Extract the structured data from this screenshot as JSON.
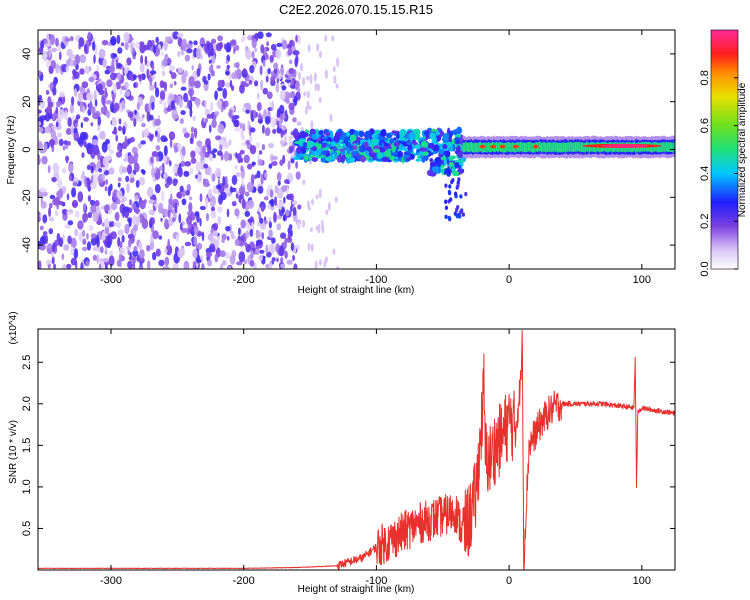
{
  "title": "C2E2.2026.070.15.15.R15",
  "chart_data": [
    {
      "type": "heatmap",
      "title": "C2E2.2026.070.15.15.R15",
      "xlabel": "Height of straight line (km)",
      "ylabel": "Frequency (Hz)",
      "xlim": [
        -355,
        125
      ],
      "ylim": [
        -50,
        50
      ],
      "xticks": [
        -300,
        -200,
        -100,
        0,
        100
      ],
      "yticks": [
        -40,
        -20,
        0,
        20,
        40
      ],
      "colorbar": {
        "label": "Normalized spectral amplitude",
        "range": [
          0,
          1
        ],
        "ticks": [
          0.0,
          0.2,
          0.4,
          0.6,
          0.8
        ],
        "tick_labels": [
          "0.0",
          "0.2",
          "0.4",
          "0.6",
          "0.8"
        ],
        "colormap": "rainbow (purple-white to magenta)"
      },
      "regions": [
        {
          "x_range": [
            -355,
            -160
          ],
          "y_range": [
            -50,
            48
          ],
          "description": "dense purple noise speckle",
          "amplitude": 0.2
        },
        {
          "x_range": [
            -160,
            -130
          ],
          "y_range": [
            -50,
            48
          ],
          "description": "sparse faint noise",
          "amplitude": 0.08
        },
        {
          "x_range": [
            -160,
            -35
          ],
          "y_range": [
            -12,
            8
          ],
          "description": "broad band with green/cyan blobs",
          "amplitude": 0.35
        },
        {
          "x_range": [
            -35,
            125
          ],
          "y_range": [
            -3,
            4
          ],
          "description": "narrow signal line near 0 Hz",
          "amplitude": 0.5
        },
        {
          "x_range": [
            55,
            115
          ],
          "y_range": [
            0.5,
            2.5
          ],
          "description": "strongest red/magenta segment",
          "amplitude": 0.95
        }
      ],
      "grid": false
    },
    {
      "type": "line",
      "xlabel": "Height of straight line (km)",
      "ylabel": "SNR (10 * v/v)",
      "y_multiplier": "(x10^4)",
      "xlim": [
        -355,
        125
      ],
      "ylim": [
        0,
        2.9
      ],
      "xticks": [
        -300,
        -200,
        -100,
        0,
        100
      ],
      "yticks": [
        0.5,
        1.0,
        1.5,
        2.0,
        2.5
      ],
      "ytick_labels": [
        "0.5",
        "1.0",
        "1.5",
        "2.0",
        "2.5"
      ],
      "color": "#e8302c",
      "series": [
        {
          "x": [
            -355,
            -300,
            -250,
            -200,
            -160,
            -130,
            -110,
            -100,
            -90,
            -80,
            -70,
            -60,
            -50,
            -40,
            -35,
            -30,
            -25,
            -20,
            -19,
            -18,
            -15,
            -10,
            -5,
            0,
            5,
            9,
            10,
            11,
            15,
            20,
            25,
            30,
            35,
            40,
            50,
            60,
            70,
            80,
            90,
            94,
            95,
            96,
            97,
            100,
            110,
            120,
            125
          ],
          "y": [
            0.02,
            0.02,
            0.02,
            0.02,
            0.03,
            0.05,
            0.15,
            0.28,
            0.35,
            0.45,
            0.55,
            0.6,
            0.65,
            0.7,
            0.45,
            0.6,
            0.9,
            1.9,
            2.2,
            1.4,
            1.3,
            1.5,
            1.6,
            1.8,
            1.7,
            2.3,
            2.85,
            0.1,
            1.5,
            1.65,
            1.8,
            1.9,
            1.97,
            2.0,
            2.0,
            2.0,
            2.0,
            1.98,
            1.96,
            1.95,
            2.55,
            1.0,
            1.9,
            1.95,
            1.92,
            1.9,
            1.88
          ]
        }
      ],
      "grid": false
    }
  ]
}
